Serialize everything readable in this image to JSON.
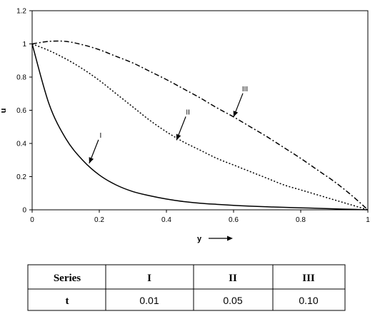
{
  "chart_data": {
    "type": "line",
    "title": "",
    "xlabel": "y",
    "ylabel": "u",
    "xlim": [
      0,
      1
    ],
    "ylim": [
      0,
      1.2
    ],
    "x_ticks": [
      "0",
      "0.2",
      "0.4",
      "0.6",
      "0.8",
      "1"
    ],
    "y_ticks": [
      "0",
      "0.2",
      "0.4",
      "0.6",
      "0.8",
      "1",
      "1.2"
    ],
    "grid": false,
    "legend": "none",
    "x": [
      0,
      0.05,
      0.1,
      0.15,
      0.2,
      0.25,
      0.3,
      0.35,
      0.4,
      0.45,
      0.5,
      0.55,
      0.6,
      0.65,
      0.7,
      0.75,
      0.8,
      0.85,
      0.9,
      0.95,
      1.0
    ],
    "series": [
      {
        "name": "I",
        "style": "solid",
        "values": [
          1.0,
          0.64,
          0.43,
          0.3,
          0.21,
          0.15,
          0.11,
          0.085,
          0.065,
          0.05,
          0.04,
          0.033,
          0.027,
          0.022,
          0.018,
          0.015,
          0.012,
          0.009,
          0.006,
          0.003,
          0.0
        ]
      },
      {
        "name": "II",
        "style": "dotted",
        "values": [
          1.0,
          0.96,
          0.91,
          0.85,
          0.78,
          0.7,
          0.62,
          0.54,
          0.47,
          0.41,
          0.36,
          0.31,
          0.27,
          0.23,
          0.19,
          0.15,
          0.12,
          0.09,
          0.06,
          0.03,
          0.0
        ]
      },
      {
        "name": "III",
        "style": "dash-dot",
        "values": [
          1.0,
          1.015,
          1.015,
          0.995,
          0.965,
          0.925,
          0.885,
          0.835,
          0.785,
          0.73,
          0.675,
          0.615,
          0.56,
          0.5,
          0.44,
          0.375,
          0.31,
          0.24,
          0.17,
          0.09,
          0.0
        ]
      }
    ],
    "annotations": [
      {
        "text": "I",
        "target": {
          "x": 0.17,
          "y": 0.28
        }
      },
      {
        "text": "II",
        "target": {
          "x": 0.43,
          "y": 0.42
        }
      },
      {
        "text": "III",
        "target": {
          "x": 0.6,
          "y": 0.56
        }
      }
    ]
  },
  "table": {
    "header": [
      "Series",
      "I",
      "II",
      "III"
    ],
    "rows": [
      [
        "t",
        "0.01",
        "0.05",
        "0.10"
      ]
    ]
  }
}
